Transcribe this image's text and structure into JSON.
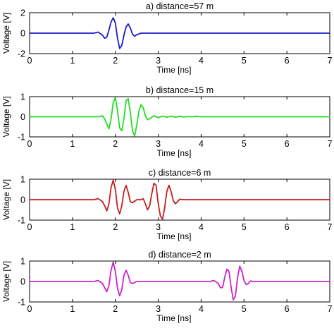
{
  "chart_data": [
    {
      "type": "line",
      "title": "a) distance=57 m",
      "xlabel": "Time [ns]",
      "ylabel": "Voltage [V]",
      "xlim": [
        0,
        7
      ],
      "ylim": [
        -2,
        2
      ],
      "xticks": [
        0,
        1,
        2,
        3,
        4,
        5,
        6,
        7
      ],
      "yticks": [
        -2,
        0,
        2
      ],
      "grid": false,
      "color": "#1a1ac8",
      "series": [
        {
          "x": [
            0,
            1.5,
            1.6,
            1.7,
            1.75,
            1.8,
            1.85,
            1.9,
            1.95,
            2.0,
            2.05,
            2.1,
            2.15,
            2.2,
            2.25,
            2.3,
            2.35,
            2.4,
            2.45,
            2.5,
            2.6,
            2.7,
            7
          ],
          "y": [
            0,
            0,
            0.1,
            -0.2,
            -0.5,
            -0.4,
            0.3,
            1.1,
            1.5,
            1.0,
            -0.5,
            -1.5,
            -1.2,
            -0.2,
            0.6,
            0.9,
            0.5,
            -0.1,
            -0.3,
            -0.15,
            0,
            0,
            0
          ]
        }
      ]
    },
    {
      "type": "line",
      "title": "b) distance=15 m",
      "xlabel": "Time [ns]",
      "ylabel": "Voltage [V]",
      "xlim": [
        0,
        7
      ],
      "ylim": [
        -1,
        1
      ],
      "xticks": [
        0,
        1,
        2,
        3,
        4,
        5,
        6,
        7
      ],
      "yticks": [
        -1,
        0,
        1
      ],
      "grid": false,
      "color": "#22dd22",
      "series": [
        {
          "x": [
            0,
            1.6,
            1.7,
            1.75,
            1.8,
            1.85,
            1.9,
            1.95,
            2.0,
            2.05,
            2.1,
            2.15,
            2.2,
            2.25,
            2.3,
            2.35,
            2.4,
            2.45,
            2.5,
            2.55,
            2.6,
            2.65,
            2.7,
            2.75,
            2.8,
            2.9,
            3.0,
            3.1,
            3.2,
            3.3,
            3.4,
            3.5,
            3.6,
            3.7,
            3.8,
            3.9,
            4.0,
            4.1,
            7
          ],
          "y": [
            0,
            0,
            0.05,
            -0.1,
            -0.35,
            -0.6,
            -0.1,
            0.7,
            0.95,
            0.3,
            -0.55,
            -0.7,
            -0.1,
            0.8,
            0.9,
            0.2,
            -0.7,
            -0.95,
            -0.4,
            0.3,
            0.6,
            0.45,
            0.05,
            -0.15,
            -0.1,
            0.05,
            -0.04,
            0.03,
            -0.02,
            0.03,
            -0.02,
            0.02,
            -0.01,
            0.01,
            0,
            0.02,
            0,
            0,
            0
          ]
        }
      ]
    },
    {
      "type": "line",
      "title": "c) distance=6 m",
      "xlabel": "Time [ns]",
      "ylabel": "Voltage [V]",
      "xlim": [
        0,
        7
      ],
      "ylim": [
        -1,
        1
      ],
      "xticks": [
        0,
        1,
        2,
        3,
        4,
        5,
        6,
        7
      ],
      "yticks": [
        -1,
        0,
        1
      ],
      "grid": false,
      "color": "#c81e1e",
      "series": [
        {
          "x": [
            0,
            1.5,
            1.6,
            1.7,
            1.75,
            1.8,
            1.85,
            1.9,
            1.95,
            2.0,
            2.05,
            2.1,
            2.15,
            2.2,
            2.25,
            2.3,
            2.35,
            2.4,
            2.5,
            2.6,
            2.65,
            2.7,
            2.75,
            2.8,
            2.85,
            2.9,
            2.95,
            3.0,
            3.05,
            3.1,
            3.15,
            3.2,
            3.25,
            3.3,
            3.35,
            3.4,
            3.45,
            3.5,
            3.6,
            7
          ],
          "y": [
            0,
            0,
            0.05,
            -0.1,
            -0.3,
            -0.55,
            -0.2,
            0.6,
            0.95,
            0.5,
            -0.4,
            -0.7,
            -0.3,
            0.4,
            0.7,
            0.35,
            -0.1,
            -0.15,
            0,
            0,
            0.05,
            -0.2,
            -0.5,
            -0.3,
            0.3,
            0.8,
            0.7,
            -0.2,
            -0.8,
            -0.95,
            -0.4,
            0.4,
            0.7,
            0.4,
            -0.05,
            -0.2,
            -0.1,
            0.02,
            0,
            0
          ]
        }
      ]
    },
    {
      "type": "line",
      "title": "d) distance=2 m",
      "xlabel": "Time [ns]",
      "ylabel": "Voltage [V]",
      "xlim": [
        0,
        7
      ],
      "ylim": [
        -1,
        1
      ],
      "xticks": [
        0,
        1,
        2,
        3,
        4,
        5,
        6,
        7
      ],
      "yticks": [
        -1,
        0,
        1
      ],
      "grid": false,
      "color": "#cc22cc",
      "series": [
        {
          "x": [
            0,
            1.5,
            1.6,
            1.7,
            1.75,
            1.8,
            1.85,
            1.9,
            1.95,
            2.0,
            2.05,
            2.1,
            2.15,
            2.2,
            2.25,
            2.3,
            2.35,
            2.4,
            2.5,
            4.2,
            4.3,
            4.4,
            4.45,
            4.5,
            4.55,
            4.6,
            4.65,
            4.7,
            4.75,
            4.8,
            4.85,
            4.9,
            4.95,
            5.0,
            5.05,
            5.1,
            5.15,
            5.2,
            5.3,
            7
          ],
          "y": [
            0,
            0,
            0.05,
            -0.1,
            -0.3,
            -0.5,
            -0.2,
            0.55,
            0.95,
            0.5,
            -0.35,
            -0.7,
            -0.4,
            0.3,
            0.55,
            0.3,
            -0.05,
            -0.1,
            0,
            0,
            0.05,
            -0.1,
            -0.3,
            -0.3,
            0.2,
            0.6,
            0.5,
            -0.3,
            -0.9,
            -0.7,
            0.2,
            0.75,
            0.5,
            0.05,
            -0.15,
            -0.1,
            0.03,
            0,
            0,
            0
          ]
        }
      ]
    }
  ]
}
